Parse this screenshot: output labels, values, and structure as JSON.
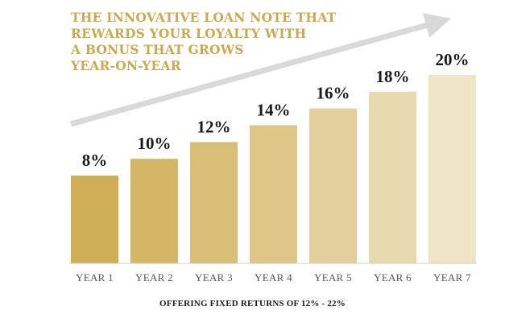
{
  "headline": [
    "THE INNOVATIVE LOAN NOTE THAT",
    "REWARDS YOUR LOYALTY WITH",
    "A BONUS THAT GROWS",
    "YEAR-ON-YEAR"
  ],
  "footer": "OFFERING FIXED RETURNS OF 12% - 22%",
  "colors": {
    "headline": "#c9aa4f",
    "arrow": "#d9d9d9",
    "bars": [
      "#cfae55",
      "#d5b666",
      "#d9be77",
      "#ddc688",
      "#e2cf9b",
      "#e8daaf",
      "#efe4c5"
    ]
  },
  "chart_data": {
    "type": "bar",
    "categories": [
      "YEAR 1",
      "YEAR 2",
      "YEAR 3",
      "YEAR 4",
      "YEAR 5",
      "YEAR 6",
      "YEAR 7"
    ],
    "values": [
      8,
      10,
      12,
      14,
      16,
      18,
      20
    ],
    "data_labels": [
      "8%",
      "10%",
      "12%",
      "14%",
      "16%",
      "18%",
      "20%"
    ],
    "xlabel": "",
    "ylabel": "",
    "grid": false,
    "arrow": "rising"
  }
}
